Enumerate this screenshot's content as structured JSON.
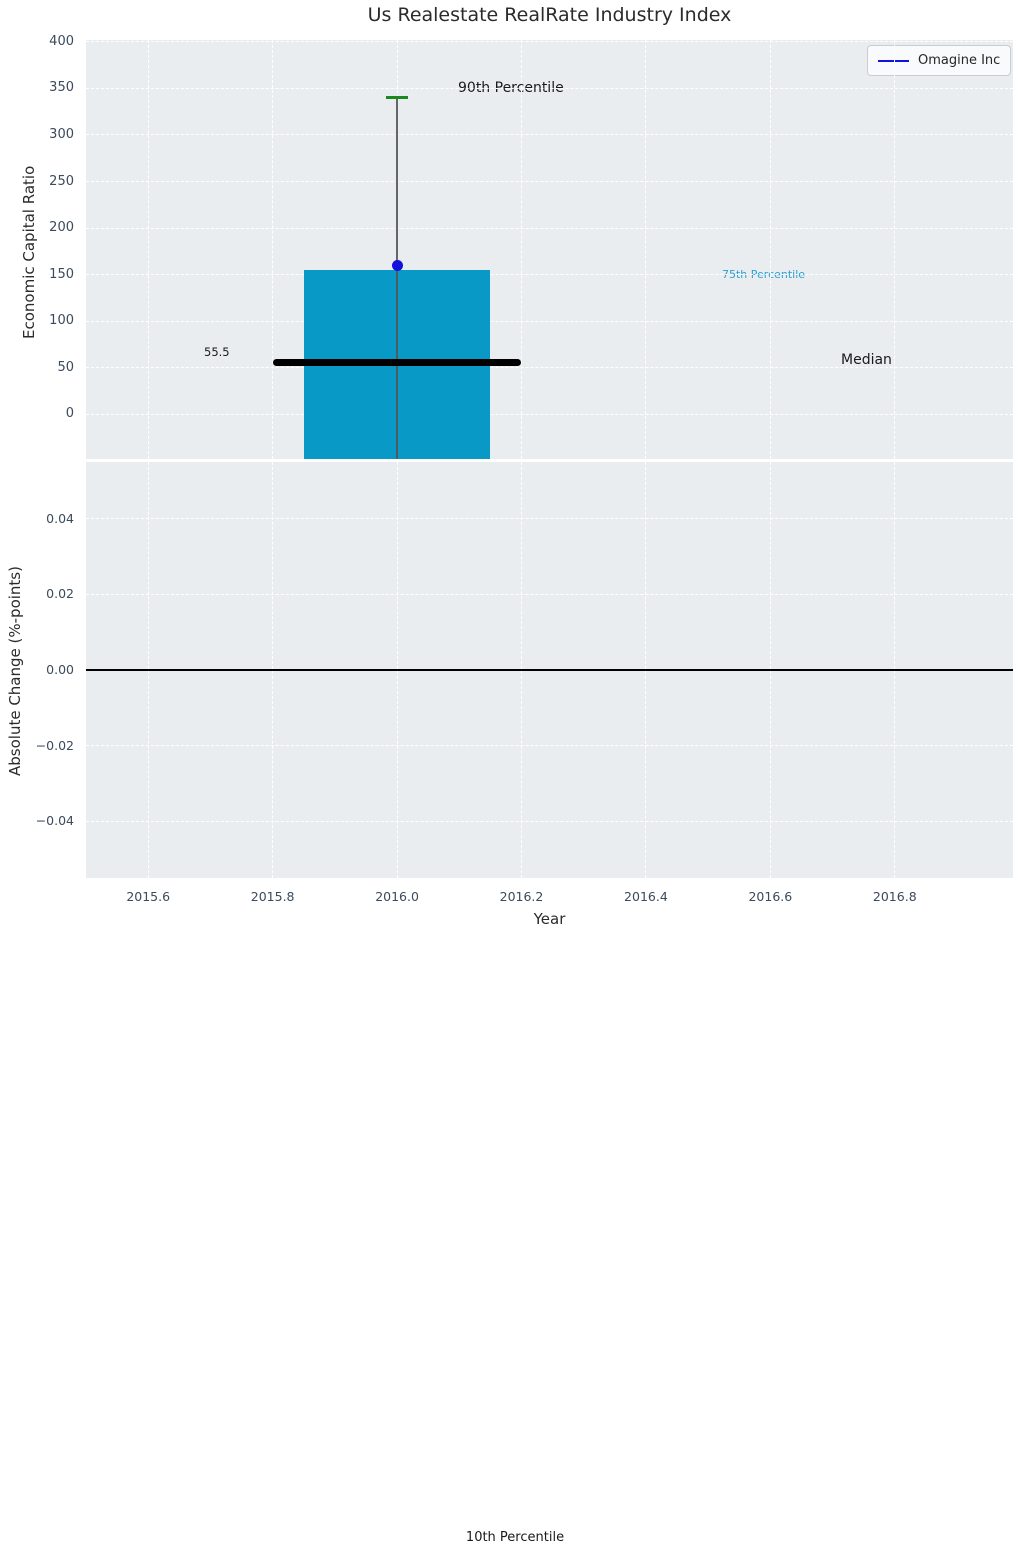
{
  "title": "Us Realestate RealRate Industry Index",
  "legend": {
    "label": "Omagine Inc",
    "position": "upper right"
  },
  "annotations": {
    "p90_label": "90th Percentile",
    "p75_label": "75th Percentile",
    "median_label": "Median",
    "median_value_label": "55.5",
    "p10_label": "10th Percentile"
  },
  "colors": {
    "axes_bg": "#eaedf0",
    "grid": "#ffffff",
    "bar": "#0899c6",
    "company_marker": "#1212dd",
    "p90_cap": "#1a8a1a",
    "median_line": "#000000",
    "whisker": "#555555",
    "p75_text": "#2b9fd2",
    "zero_line": "#000000",
    "tick_text": "#3b4a5c"
  },
  "chart_data": [
    {
      "type": "bar",
      "subplot": "top",
      "title": "Us Realestate RealRate Industry Index",
      "ylabel": "Economic Capital Ratio",
      "ylim": [
        -48,
        402
      ],
      "xlim": [
        2015.5,
        2016.99
      ],
      "grid": true,
      "legend_position": "upper right",
      "yticks": [
        {
          "v": 0,
          "label": "0"
        },
        {
          "v": 50,
          "label": "50"
        },
        {
          "v": 100,
          "label": "100"
        },
        {
          "v": 150,
          "label": "150"
        },
        {
          "v": 200,
          "label": "200"
        },
        {
          "v": 250,
          "label": "250"
        },
        {
          "v": 300,
          "label": "300"
        },
        {
          "v": 350,
          "label": "350"
        },
        {
          "v": 400,
          "label": "400"
        }
      ],
      "xticks": [
        {
          "v": 2015.6,
          "label": ""
        },
        {
          "v": 2015.8,
          "label": ""
        },
        {
          "v": 2016.0,
          "label": ""
        },
        {
          "v": 2016.2,
          "label": ""
        },
        {
          "v": 2016.4,
          "label": ""
        },
        {
          "v": 2016.6,
          "label": ""
        },
        {
          "v": 2016.8,
          "label": ""
        }
      ],
      "x_center": 2016.0,
      "bar": {
        "x": 2016.0,
        "top_value": 155,
        "bottom_value": -48,
        "bottom_clipped": true,
        "width_years": 0.3
      },
      "percentiles": {
        "p90": 340,
        "p75": 155,
        "median": 55.5,
        "p10_off_scale_below": true
      },
      "median_line": {
        "y": 55.5,
        "x_from": 2015.8,
        "x_to": 2016.2
      },
      "whisker": {
        "x": 2016.0,
        "y_top": 340,
        "clipped_bottom": true
      },
      "p90_cap": {
        "x": 2016.0,
        "y": 340,
        "width_years": 0.036
      },
      "series": [
        {
          "name": "Omagine Inc",
          "type": "scatter",
          "x": 2016.0,
          "y": 160
        }
      ]
    },
    {
      "type": "line",
      "subplot": "bottom",
      "ylabel": "Absolute Change (%-points)",
      "xlabel": "Year",
      "ylim": [
        -0.055,
        0.055
      ],
      "xlim": [
        2015.5,
        2016.99
      ],
      "grid": true,
      "yticks": [
        {
          "v": 0.04,
          "label": "0.04"
        },
        {
          "v": 0.02,
          "label": "0.02"
        },
        {
          "v": 0.0,
          "label": "0.00"
        },
        {
          "v": -0.02,
          "label": "−0.02"
        },
        {
          "v": -0.04,
          "label": "−0.04"
        }
      ],
      "xticks": [
        {
          "v": 2015.6,
          "label": "2015.6"
        },
        {
          "v": 2015.8,
          "label": "2015.8"
        },
        {
          "v": 2016.0,
          "label": "2016.0"
        },
        {
          "v": 2016.2,
          "label": "2016.2"
        },
        {
          "v": 2016.4,
          "label": "2016.4"
        },
        {
          "v": 2016.6,
          "label": "2016.6"
        },
        {
          "v": 2016.8,
          "label": "2016.8"
        }
      ],
      "zero_line_y": 0.0,
      "series": []
    }
  ]
}
